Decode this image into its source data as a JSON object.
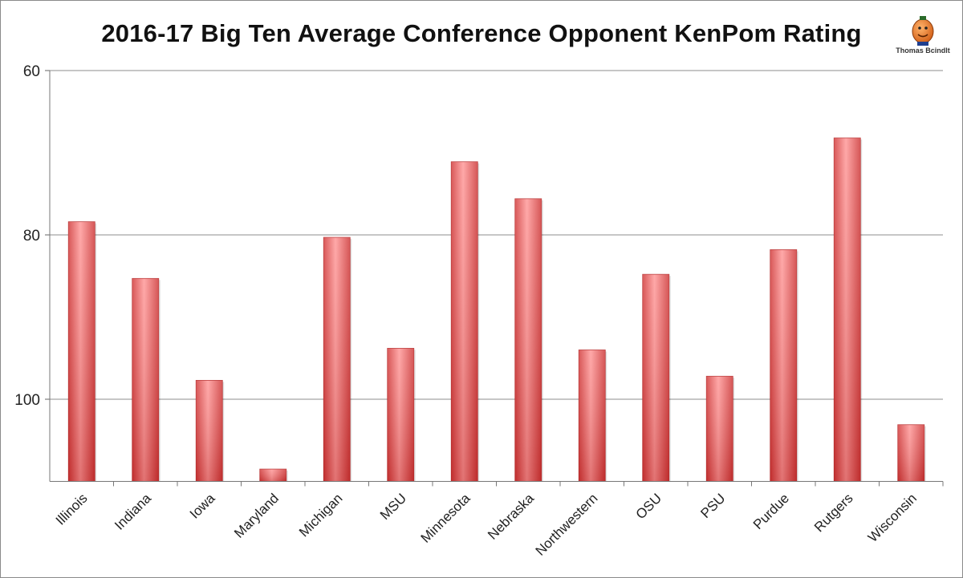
{
  "chart_data": {
    "type": "bar",
    "title": "2016-17 Big Ten Average Conference Opponent KenPom Rating",
    "xlabel": "",
    "ylabel": "",
    "categories": [
      "Illinois",
      "Indiana",
      "Iowa",
      "Maryland",
      "Michigan",
      "MSU",
      "Minnesota",
      "Nebraska",
      "Northwestern",
      "OSU",
      "PSU",
      "Purdue",
      "Rutgers",
      "Wisconsin"
    ],
    "values": [
      78.4,
      85.3,
      97.7,
      108.5,
      80.3,
      93.8,
      71.1,
      75.6,
      94.0,
      84.8,
      97.2,
      81.8,
      68.2,
      103.1
    ],
    "ylim": [
      60,
      110
    ],
    "y_reversed": true,
    "y_ticks": [
      60,
      80,
      100
    ],
    "grid": true,
    "bar_color": "#e05555"
  },
  "logo": {
    "label": "Thomas Bcindlt",
    "icon": "orange-mascot-icon"
  }
}
